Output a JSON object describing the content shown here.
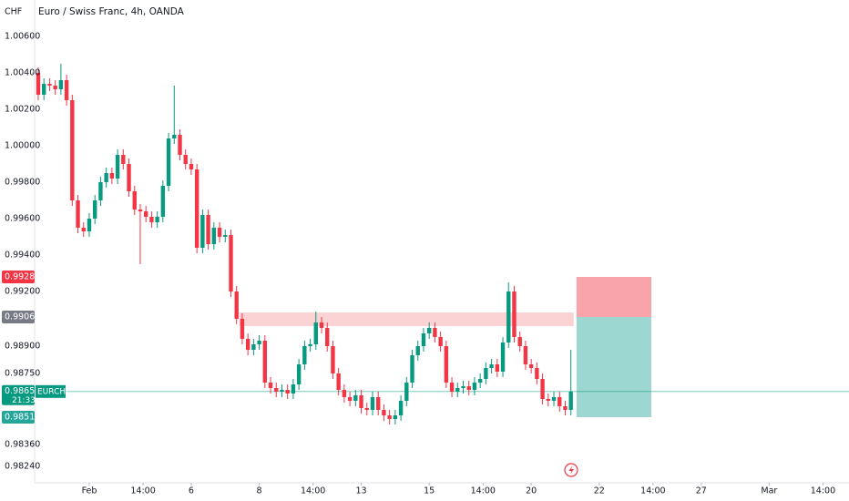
{
  "chart_data": {
    "type": "candlestick",
    "title": "Euro / Swiss Franc, 4h, OANDA",
    "currency": "CHF",
    "colors": {
      "up": "#089981",
      "down": "#f23645"
    },
    "ylim": [
      0.9815,
      1.008
    ],
    "yticks": [
      {
        "value": 1.006,
        "label": "1.00600"
      },
      {
        "value": 1.004,
        "label": "1.00400"
      },
      {
        "value": 1.002,
        "label": "1.00200"
      },
      {
        "value": 1.0,
        "label": "1.00000"
      },
      {
        "value": 0.998,
        "label": "0.99800"
      },
      {
        "value": 0.996,
        "label": "0.99600"
      },
      {
        "value": 0.994,
        "label": "0.99400"
      },
      {
        "value": 0.992,
        "label": "0.99200"
      },
      {
        "value": 0.989,
        "label": "0.98900"
      },
      {
        "value": 0.9875,
        "label": "0.98750"
      },
      {
        "value": 0.9836,
        "label": "0.98360"
      },
      {
        "value": 0.9824,
        "label": "0.98240"
      }
    ],
    "xticks": [
      {
        "value": 9,
        "label": "Feb"
      },
      {
        "value": 18.5,
        "label": "14:00"
      },
      {
        "value": 27,
        "label": "6"
      },
      {
        "value": 39,
        "label": "8"
      },
      {
        "value": 48.5,
        "label": "14:00"
      },
      {
        "value": 57,
        "label": "13"
      },
      {
        "value": 69,
        "label": "15"
      },
      {
        "value": 78.5,
        "label": "14:00"
      },
      {
        "value": 87,
        "label": "20"
      },
      {
        "value": 99,
        "label": "22"
      },
      {
        "value": 108.5,
        "label": "14:00"
      },
      {
        "value": 117,
        "label": "27"
      },
      {
        "value": 129,
        "label": "Mar"
      },
      {
        "value": 138.5,
        "label": "14:00"
      }
    ],
    "open": [
      1.004,
      1.0028,
      1.0034,
      1.0033,
      1.0031,
      1.0036,
      1.0025,
      0.997,
      0.9955,
      0.9953,
      0.996,
      0.997,
      0.998,
      0.9985,
      0.9982,
      0.9995,
      0.999,
      0.9975,
      0.9965,
      0.9964,
      0.9961,
      0.9958,
      0.9961,
      0.9978,
      1.0004,
      1.0006,
      0.9995,
      0.999,
      0.9987,
      0.9944,
      0.9962,
      0.9946,
      0.9955,
      0.995,
      0.9951,
      0.992,
      0.9905,
      0.9894,
      0.9888,
      0.9891,
      0.9893,
      0.987,
      0.9867,
      0.9865,
      0.9866,
      0.9864,
      0.9869,
      0.988,
      0.989,
      0.9891,
      0.9903,
      0.99,
      0.989,
      0.9875,
      0.9866,
      0.9862,
      0.986,
      0.9863,
      0.9856,
      0.9855,
      0.9862,
      0.9855,
      0.9852,
      0.985,
      0.9852,
      0.986,
      0.987,
      0.9885,
      0.989,
      0.9897,
      0.99,
      0.9895,
      0.989,
      0.987,
      0.9865,
      0.9867,
      0.9868,
      0.9866,
      0.987,
      0.9872,
      0.9878,
      0.988,
      0.9876,
      0.9892,
      0.992,
      0.9895,
      0.989,
      0.988,
      0.9878,
      0.9872,
      0.9861,
      0.986,
      0.9862,
      0.9857,
      0.9855
    ],
    "high": [
      1.0043,
      1.0037,
      1.0037,
      1.0036,
      1.0045,
      1.0039,
      1.0028,
      0.9973,
      0.9958,
      0.9963,
      0.9973,
      0.9983,
      0.9988,
      0.9988,
      0.9998,
      0.9998,
      0.9993,
      0.9978,
      0.9968,
      0.9967,
      0.9964,
      0.9964,
      0.9981,
      1.0007,
      1.0033,
      1.0009,
      0.9998,
      0.9993,
      0.999,
      0.9965,
      0.9965,
      0.9958,
      0.9958,
      0.9954,
      0.9954,
      0.9923,
      0.9908,
      0.9897,
      0.9894,
      0.9896,
      0.9896,
      0.9873,
      0.987,
      0.9869,
      0.9869,
      0.9872,
      0.9883,
      0.9893,
      0.9894,
      0.9909,
      0.9906,
      0.9903,
      0.9893,
      0.9878,
      0.9869,
      0.9865,
      0.9866,
      0.9866,
      0.9859,
      0.9865,
      0.9865,
      0.9858,
      0.9855,
      0.9855,
      0.9863,
      0.9873,
      0.9888,
      0.9893,
      0.99,
      0.9903,
      0.9903,
      0.9898,
      0.9893,
      0.9873,
      0.987,
      0.9871,
      0.9871,
      0.9873,
      0.9875,
      0.9881,
      0.9883,
      0.9883,
      0.9895,
      0.9925,
      0.9923,
      0.9898,
      0.9893,
      0.9883,
      0.9881,
      0.9875,
      0.9864,
      0.9865,
      0.9865,
      0.986,
      0.9888
    ],
    "low": [
      1.0025,
      1.0025,
      1.003,
      1.0028,
      1.0028,
      1.0022,
      0.9967,
      0.9952,
      0.995,
      0.995,
      0.9957,
      0.9967,
      0.9977,
      0.9979,
      0.9979,
      0.9987,
      0.9972,
      0.9962,
      0.9935,
      0.9958,
      0.9955,
      0.9955,
      0.9958,
      0.9975,
      1.0001,
      0.9992,
      0.9987,
      0.9984,
      0.9941,
      0.9941,
      0.9943,
      0.9943,
      0.9947,
      0.9947,
      0.9917,
      0.9902,
      0.9891,
      0.9885,
      0.9885,
      0.9888,
      0.9867,
      0.9864,
      0.9862,
      0.9862,
      0.9861,
      0.9861,
      0.9866,
      0.9877,
      0.9887,
      0.9888,
      0.9897,
      0.9887,
      0.9872,
      0.9863,
      0.9859,
      0.9857,
      0.9857,
      0.9853,
      0.9852,
      0.9852,
      0.9852,
      0.9849,
      0.9847,
      0.9847,
      0.9849,
      0.9857,
      0.9867,
      0.9882,
      0.9887,
      0.9894,
      0.9892,
      0.9887,
      0.9867,
      0.9862,
      0.9862,
      0.9864,
      0.9863,
      0.9863,
      0.9867,
      0.9869,
      0.9875,
      0.9873,
      0.9873,
      0.9889,
      0.9892,
      0.9887,
      0.9877,
      0.9875,
      0.9869,
      0.9858,
      0.9857,
      0.9857,
      0.9854,
      0.9852,
      0.9852
    ],
    "close": [
      1.0028,
      1.0034,
      1.0033,
      1.0031,
      1.0036,
      1.0025,
      0.997,
      0.9955,
      0.9953,
      0.996,
      0.997,
      0.998,
      0.9985,
      0.9982,
      0.9995,
      0.999,
      0.9975,
      0.9965,
      0.9964,
      0.9961,
      0.9958,
      0.9961,
      0.9978,
      1.0004,
      1.0006,
      0.9995,
      0.999,
      0.9987,
      0.9944,
      0.9962,
      0.9946,
      0.9955,
      0.995,
      0.9951,
      0.992,
      0.9905,
      0.9894,
      0.9888,
      0.9891,
      0.9893,
      0.987,
      0.9867,
      0.9865,
      0.9866,
      0.9864,
      0.9869,
      0.988,
      0.989,
      0.9891,
      0.9903,
      0.99,
      0.989,
      0.9875,
      0.9866,
      0.9862,
      0.986,
      0.9863,
      0.9856,
      0.9855,
      0.9862,
      0.9855,
      0.9852,
      0.985,
      0.9852,
      0.986,
      0.987,
      0.9885,
      0.989,
      0.9897,
      0.99,
      0.9895,
      0.989,
      0.987,
      0.9865,
      0.9867,
      0.9868,
      0.9866,
      0.987,
      0.9872,
      0.9878,
      0.988,
      0.9876,
      0.9892,
      0.992,
      0.9895,
      0.989,
      0.988,
      0.9878,
      0.9872,
      0.9861,
      0.986,
      0.9862,
      0.9857,
      0.9855,
      0.98651
    ],
    "zone": {
      "top": 0.99085,
      "bottom": 0.9901,
      "start": 35.5,
      "end": 94.5,
      "color": "#fccbcd"
    },
    "position": {
      "start": 95,
      "end": 108.2,
      "stop": {
        "value": 0.9928,
        "label": "0.99280",
        "color": "#f23645"
      },
      "entry": {
        "value": 0.9906,
        "label": "0.99060",
        "color": "#787b86"
      },
      "target": {
        "value": 0.9851,
        "label": "0.98510",
        "color": "#26a69a"
      }
    },
    "last": {
      "value": 0.98651,
      "label": "0.98651",
      "symbol": "EURCHF",
      "countdown": "21:33",
      "color": "#089981"
    }
  }
}
